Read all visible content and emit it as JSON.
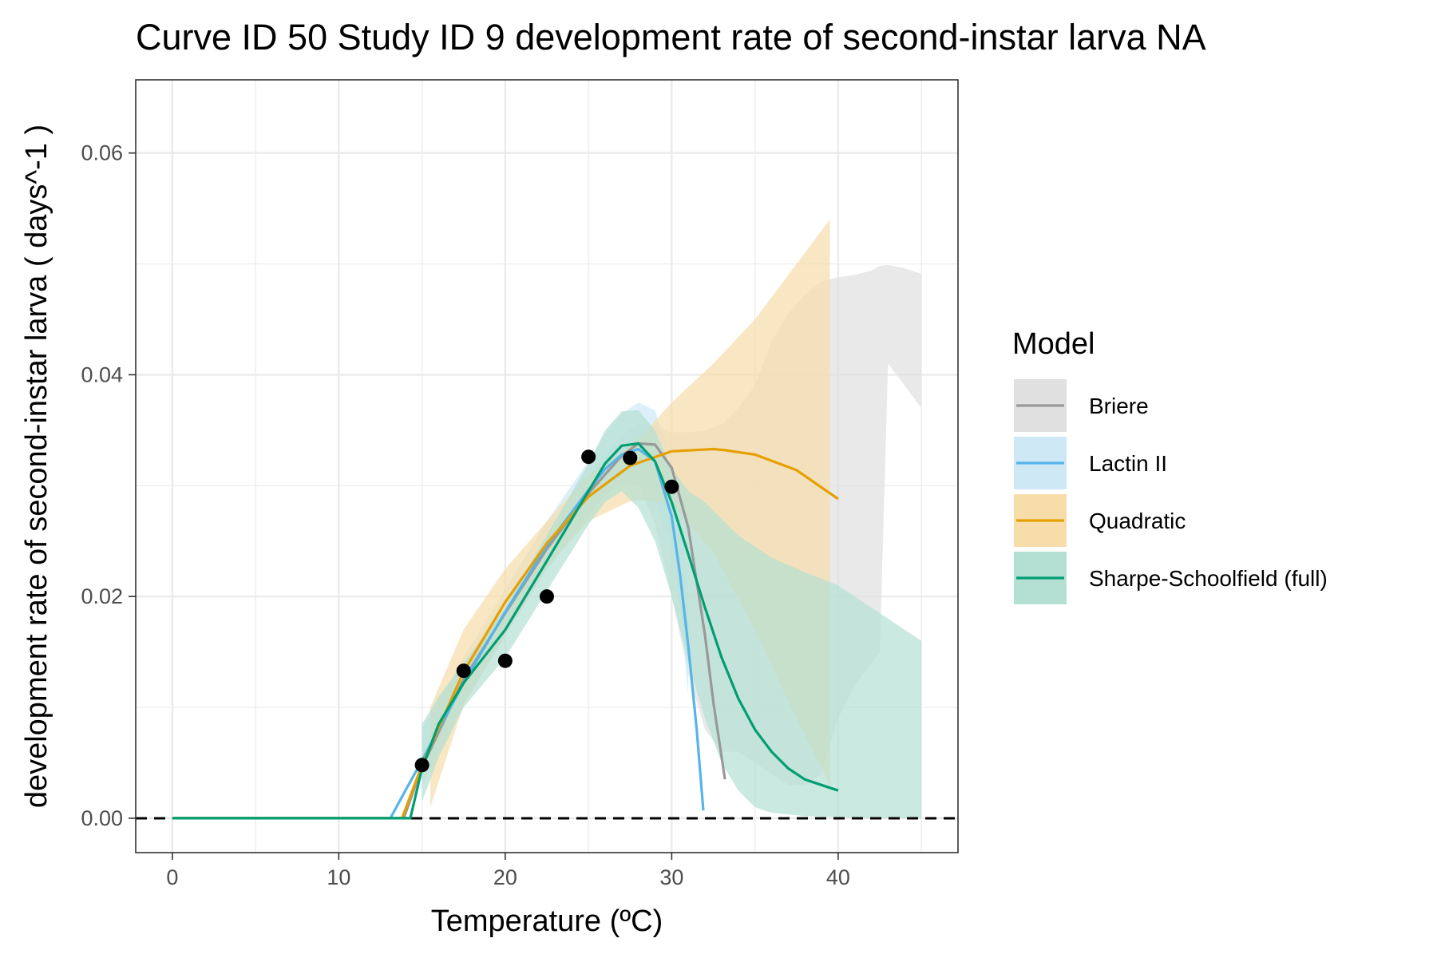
{
  "chart_data": {
    "type": "line",
    "title": "Curve ID 50 Study ID 9 development rate of second-instar larva NA",
    "xlabel": "Temperature (ºC)",
    "ylabel": "development rate of second-instar larva ( days^-1 )",
    "xlim": [
      -2.2,
      47.2
    ],
    "ylim": [
      -0.0031,
      0.0666
    ],
    "x_ticks": [
      "0",
      "10",
      "20",
      "30",
      "40"
    ],
    "y_ticks": [
      "0.00",
      "0.02",
      "0.04",
      "0.06"
    ],
    "x_tick_values": [
      0,
      10,
      20,
      30,
      40
    ],
    "y_tick_values": [
      0,
      0.02,
      0.04,
      0.06
    ],
    "grid": true,
    "legend": {
      "title": "Model",
      "position": "right",
      "entries": [
        "Briere",
        "Lactin II",
        "Quadratic",
        "Sharpe-Schoolfield (full)"
      ]
    },
    "reference_line": {
      "y": 0,
      "style": "dashed"
    },
    "points": {
      "x": [
        15,
        17.5,
        20,
        22.5,
        25,
        27.5,
        30
      ],
      "y": [
        0.0048,
        0.0133,
        0.0142,
        0.02,
        0.0326,
        0.0325,
        0.0299
      ]
    },
    "series": [
      {
        "name": "Briere",
        "color": "#999999",
        "fill": "#e0e0e0",
        "line": {
          "x": [
            0,
            13.9,
            15,
            17.5,
            20,
            22.5,
            25,
            27,
            28,
            29,
            30,
            31,
            32,
            32.5,
            33.2
          ],
          "y": [
            0,
            0,
            0.0046,
            0.0125,
            0.0185,
            0.0243,
            0.0293,
            0.0327,
            0.0338,
            0.0337,
            0.0316,
            0.0262,
            0.0165,
            0.0105,
            0.0035
          ]
        },
        "ribbon": {
          "x": [
            15,
            17.5,
            20,
            22.5,
            25,
            27,
            28,
            29,
            30,
            31,
            32,
            33,
            34,
            35,
            36,
            37,
            38,
            39,
            40,
            41,
            42,
            42.5,
            43,
            44,
            45
          ],
          "upper": [
            0.0055,
            0.0135,
            0.0195,
            0.0255,
            0.0308,
            0.0345,
            0.0356,
            0.0355,
            0.0348,
            0.0348,
            0.035,
            0.0355,
            0.037,
            0.039,
            0.043,
            0.0455,
            0.0472,
            0.0484,
            0.0488,
            0.049,
            0.0494,
            0.0498,
            0.0499,
            0.0496,
            0.0491
          ],
          "lower": [
            0.0038,
            0.0112,
            0.0172,
            0.0228,
            0.0276,
            0.0305,
            0.03,
            0.0265,
            0.02,
            0.013,
            0.008,
            0.006,
            0.006,
            0.005,
            0.004,
            0.003,
            0.003,
            0.004,
            0.009,
            0.012,
            0.014,
            0.015,
            0.041,
            0.039,
            0.037
          ]
        }
      },
      {
        "name": "Lactin II",
        "color": "#56b4e9",
        "fill": "#cfe8f6",
        "line": {
          "x": [
            0,
            13.1,
            14,
            15,
            17.5,
            20,
            22.5,
            25,
            26,
            27,
            28,
            29,
            30,
            30.5,
            31,
            31.5,
            31.9
          ],
          "y": [
            0,
            0,
            0.0025,
            0.0052,
            0.0122,
            0.0186,
            0.0246,
            0.0296,
            0.0315,
            0.0328,
            0.0333,
            0.0322,
            0.0272,
            0.022,
            0.0155,
            0.008,
            0.0007
          ]
        },
        "ribbon": {
          "x": [
            15,
            17.5,
            20,
            22.5,
            25,
            26,
            27,
            28,
            29,
            30,
            30.5,
            31
          ],
          "upper": [
            0.008,
            0.0145,
            0.0206,
            0.0268,
            0.0322,
            0.0347,
            0.0365,
            0.0375,
            0.0368,
            0.032,
            0.028,
            0.02
          ],
          "lower": [
            0.003,
            0.0102,
            0.0165,
            0.0224,
            0.0274,
            0.029,
            0.0302,
            0.03,
            0.0285,
            0.0245,
            0.019,
            0.011
          ]
        }
      },
      {
        "name": "Quadratic",
        "color": "#e69f00",
        "fill": "#f6ddaa",
        "line": {
          "x": [
            0,
            13.8,
            15,
            17.5,
            20,
            22.5,
            25,
            27.5,
            30,
            32.5,
            33.2,
            35,
            37.5,
            40
          ],
          "y": [
            0,
            0,
            0.0048,
            0.0132,
            0.0195,
            0.0248,
            0.029,
            0.0318,
            0.0331,
            0.0333,
            0.0332,
            0.0328,
            0.0314,
            0.0288
          ]
        },
        "ribbon": {
          "x": [
            15.5,
            17.5,
            20,
            22.5,
            25,
            27.5,
            28.5,
            30,
            32.5,
            35,
            37.5,
            39.5
          ],
          "upper": [
            0.01,
            0.017,
            0.0225,
            0.0268,
            0.031,
            0.0336,
            0.035,
            0.0375,
            0.041,
            0.045,
            0.05,
            0.054
          ],
          "lower": [
            0.001,
            0.0102,
            0.0165,
            0.0226,
            0.0268,
            0.0286,
            0.0287,
            0.0283,
            0.024,
            0.017,
            0.009,
            0.003
          ]
        }
      },
      {
        "name": "Sharpe-Schoolfield (full)",
        "color": "#009e73",
        "fill": "#b3e0d3",
        "line": {
          "x": [
            0,
            14.3,
            15,
            16,
            17.5,
            20,
            22.5,
            25,
            26,
            27,
            28,
            29,
            30,
            31,
            32,
            33,
            34,
            35,
            36,
            37,
            38,
            39,
            40
          ],
          "y": [
            0,
            0,
            0.0045,
            0.0085,
            0.0122,
            0.017,
            0.0232,
            0.0295,
            0.032,
            0.0336,
            0.0338,
            0.0322,
            0.0285,
            0.0238,
            0.019,
            0.0145,
            0.0108,
            0.008,
            0.006,
            0.0045,
            0.0035,
            0.003,
            0.0025
          ]
        },
        "ribbon": {
          "x": [
            15,
            16,
            17.5,
            20,
            22.5,
            25,
            26,
            27,
            28,
            29,
            30,
            31,
            32,
            33,
            34,
            35,
            36,
            38,
            40,
            42,
            45
          ],
          "upper": [
            0.0085,
            0.011,
            0.014,
            0.019,
            0.0255,
            0.032,
            0.035,
            0.0367,
            0.0368,
            0.035,
            0.0315,
            0.0295,
            0.0285,
            0.027,
            0.0255,
            0.0245,
            0.0235,
            0.0222,
            0.021,
            0.019,
            0.016
          ],
          "lower": [
            0.0015,
            0.0055,
            0.01,
            0.0145,
            0.0205,
            0.0265,
            0.0285,
            0.0295,
            0.028,
            0.025,
            0.02,
            0.014,
            0.009,
            0.005,
            0.0025,
            0.001,
            0.0005,
            0.0002,
            0.0001,
            0.0,
            0.0
          ]
        }
      }
    ]
  }
}
